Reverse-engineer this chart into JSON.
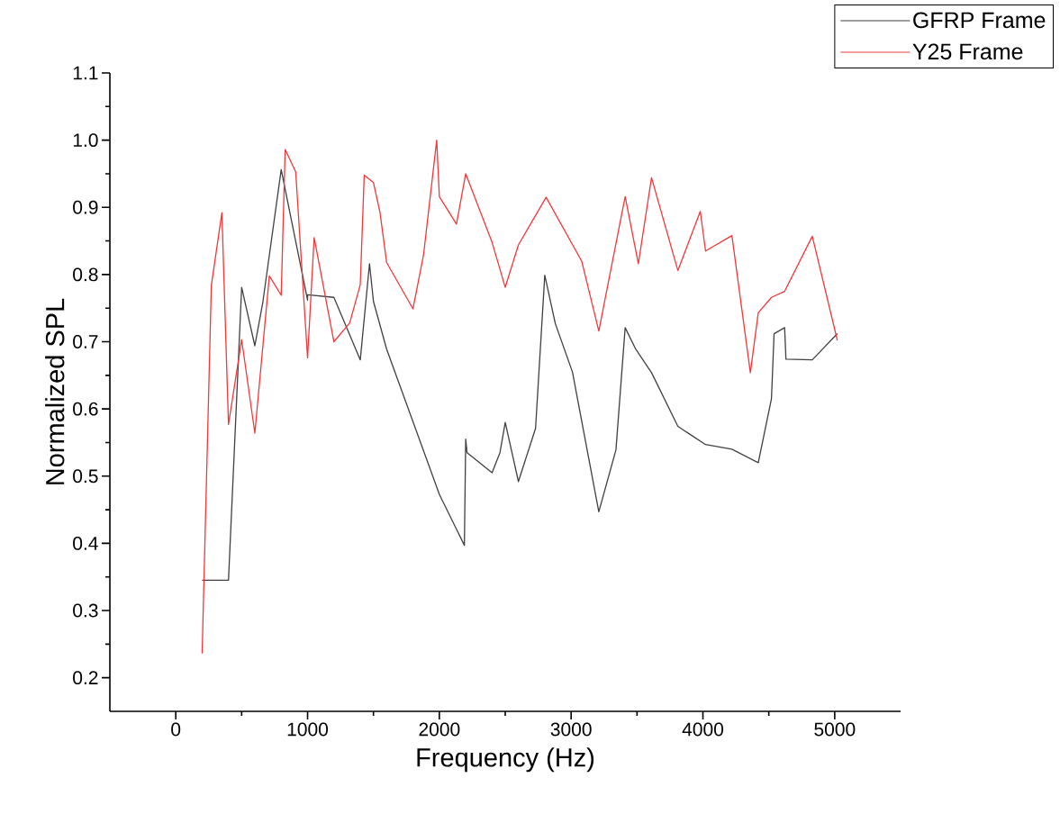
{
  "chart_data": {
    "type": "line",
    "xlabel": "Frequency (Hz)",
    "ylabel": "Normalized SPL",
    "xlim": [
      -500,
      5500
    ],
    "ylim": [
      0.15,
      1.1
    ],
    "xticks": [
      0,
      1000,
      2000,
      3000,
      4000,
      5000
    ],
    "yticks": [
      0.2,
      0.3,
      0.4,
      0.5,
      0.6,
      0.7,
      0.8,
      0.9,
      {
        "value": 1,
        "label": "1.0"
      },
      1.1
    ],
    "legend": "top right",
    "grid": false,
    "marker": "none",
    "line_style": "solid",
    "series": [
      {
        "name": "GFRP Frame",
        "color": "#404040",
        "x": [
          200,
          400,
          500,
          600,
          660,
          800,
          1000,
          1000,
          1200,
          1400,
          1470,
          1500,
          1600,
          2000,
          2190,
          2200,
          2210,
          2400,
          2460,
          2500,
          2600,
          2730,
          2800,
          2880,
          3010,
          3210,
          3340,
          3410,
          3490,
          3610,
          3810,
          4020,
          4220,
          4420,
          4520,
          4540,
          4620,
          4630,
          4830,
          5020
        ],
        "values": [
          0.345,
          0.345,
          0.781,
          0.694,
          0.758,
          0.956,
          0.762,
          0.77,
          0.766,
          0.673,
          0.816,
          0.76,
          0.689,
          0.473,
          0.397,
          0.555,
          0.535,
          0.505,
          0.535,
          0.58,
          0.492,
          0.571,
          0.799,
          0.727,
          0.655,
          0.447,
          0.539,
          0.721,
          0.689,
          0.654,
          0.574,
          0.547,
          0.54,
          0.52,
          0.615,
          0.712,
          0.721,
          0.674,
          0.673,
          0.712
        ]
      },
      {
        "name": "Y25 Frame",
        "color": "#f0393c",
        "x": [
          200,
          270,
          350,
          400,
          500,
          600,
          710,
          800,
          830,
          910,
          1000,
          1050,
          1200,
          1320,
          1400,
          1430,
          1500,
          1550,
          1600,
          1800,
          1880,
          1980,
          2000,
          2130,
          2200,
          2400,
          2500,
          2600,
          2810,
          3080,
          3210,
          3410,
          3510,
          3610,
          3810,
          3980,
          4020,
          4220,
          4360,
          4420,
          4520,
          4620,
          4830,
          5020
        ],
        "values": [
          0.236,
          0.784,
          0.892,
          0.577,
          0.703,
          0.564,
          0.798,
          0.769,
          0.986,
          0.953,
          0.676,
          0.855,
          0.7,
          0.728,
          0.785,
          0.948,
          0.937,
          0.892,
          0.818,
          0.749,
          0.829,
          1.0,
          0.916,
          0.875,
          0.95,
          0.848,
          0.781,
          0.844,
          0.915,
          0.82,
          0.716,
          0.916,
          0.816,
          0.944,
          0.806,
          0.894,
          0.835,
          0.858,
          0.654,
          0.743,
          0.766,
          0.775,
          0.857,
          0.702
        ]
      }
    ]
  }
}
